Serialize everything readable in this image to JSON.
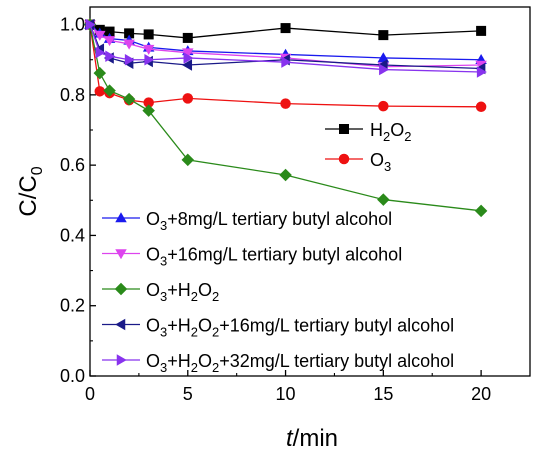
{
  "chart_data": {
    "type": "line",
    "xlabel_italic": "t",
    "xlabel_rest": "/min",
    "ylabel_main": "C/C",
    "ylabel_sub": "0",
    "xlim": [
      0,
      22.5
    ],
    "ylim": [
      0.0,
      1.05
    ],
    "x_ticks": [
      0,
      5,
      10,
      15,
      20
    ],
    "x_tick_labels": [
      "0",
      "5",
      "10",
      "15",
      "20"
    ],
    "y_ticks": [
      0.0,
      0.2,
      0.4,
      0.6,
      0.8,
      1.0
    ],
    "y_tick_labels": [
      "0.0",
      "0.2",
      "0.4",
      "0.6",
      "0.8",
      "1.0"
    ],
    "grid": false,
    "legend_1_placement": "upper-right",
    "legend_2_placement": "lower-left",
    "series": [
      {
        "name": "H2O2",
        "name_parts": [
          [
            "H",
            ""
          ],
          [
            "2",
            "sub"
          ],
          [
            "O",
            ""
          ],
          [
            "2",
            "sub"
          ]
        ],
        "marker": "square",
        "color": "#000000",
        "legend": 1,
        "x": [
          0,
          0.5,
          1,
          2,
          3,
          5,
          10,
          15,
          20
        ],
        "y": [
          1.0,
          0.985,
          0.98,
          0.975,
          0.972,
          0.962,
          0.99,
          0.97,
          0.982
        ]
      },
      {
        "name": "O3",
        "name_parts": [
          [
            "O",
            ""
          ],
          [
            "3",
            "sub"
          ]
        ],
        "marker": "circle",
        "color": "#ee1111",
        "legend": 1,
        "x": [
          0,
          0.5,
          1,
          2,
          3,
          5,
          10,
          15,
          20
        ],
        "y": [
          1.0,
          0.81,
          0.805,
          0.785,
          0.778,
          0.79,
          0.775,
          0.768,
          0.766
        ]
      },
      {
        "name": "O3+8mg/L tertiary butyl alcohol",
        "name_parts": [
          [
            "O",
            ""
          ],
          [
            "3",
            "sub"
          ],
          [
            "+8mg/L tertiary butyl alcohol",
            ""
          ]
        ],
        "marker": "triangle-up",
        "color": "#1a1aee",
        "legend": 2,
        "x": [
          0,
          0.5,
          1,
          2,
          3,
          5,
          10,
          15,
          20
        ],
        "y": [
          1.0,
          0.975,
          0.96,
          0.955,
          0.935,
          0.925,
          0.915,
          0.905,
          0.9
        ]
      },
      {
        "name": "O3+16mg/L tertiary butyl alcohol",
        "name_parts": [
          [
            "O",
            ""
          ],
          [
            "3",
            "sub"
          ],
          [
            "+16mg/L tertiary butyl alcohol",
            ""
          ]
        ],
        "marker": "triangle-down",
        "color": "#dd44ee",
        "legend": 2,
        "x": [
          0,
          0.5,
          1,
          2,
          3,
          5,
          10,
          15,
          20
        ],
        "y": [
          1.0,
          0.97,
          0.955,
          0.945,
          0.93,
          0.92,
          0.905,
          0.88,
          0.885
        ]
      },
      {
        "name": "O3+H2O2",
        "name_parts": [
          [
            "O",
            ""
          ],
          [
            "3",
            "sub"
          ],
          [
            "+H",
            ""
          ],
          [
            "2",
            "sub"
          ],
          [
            "O",
            ""
          ],
          [
            "2",
            "sub"
          ]
        ],
        "marker": "diamond",
        "color": "#2a8a1a",
        "legend": 2,
        "x": [
          0,
          0.5,
          1,
          2,
          3,
          5,
          10,
          15,
          20
        ],
        "y": [
          1.0,
          0.862,
          0.812,
          0.788,
          0.755,
          0.615,
          0.572,
          0.502,
          0.47
        ]
      },
      {
        "name": "O3+H2O2+16mg/L tertiary butyl alcohol",
        "name_parts": [
          [
            "O",
            ""
          ],
          [
            "3",
            "sub"
          ],
          [
            "+H",
            ""
          ],
          [
            "2",
            "sub"
          ],
          [
            "O",
            ""
          ],
          [
            "2",
            "sub"
          ],
          [
            "+16mg/L tertiary butyl alcohol",
            ""
          ]
        ],
        "marker": "triangle-left",
        "color": "#1a1a88",
        "legend": 2,
        "x": [
          0,
          0.5,
          1,
          2,
          3,
          5,
          10,
          15,
          20
        ],
        "y": [
          1.0,
          0.93,
          0.905,
          0.89,
          0.895,
          0.885,
          0.9,
          0.885,
          0.875
        ]
      },
      {
        "name": "O3+H2O2+32mg/L tertiary butyl alcohol",
        "name_parts": [
          [
            "O",
            ""
          ],
          [
            "3",
            "sub"
          ],
          [
            "+H",
            ""
          ],
          [
            "2",
            "sub"
          ],
          [
            "O",
            ""
          ],
          [
            "2",
            "sub"
          ],
          [
            "+32mg/L tertiary butyl alcohol",
            ""
          ]
        ],
        "marker": "triangle-right",
        "color": "#8833ee",
        "legend": 2,
        "x": [
          0,
          0.5,
          1,
          2,
          3,
          5,
          10,
          15,
          20
        ],
        "y": [
          1.0,
          0.92,
          0.91,
          0.9,
          0.9,
          0.905,
          0.893,
          0.872,
          0.865
        ]
      }
    ]
  }
}
